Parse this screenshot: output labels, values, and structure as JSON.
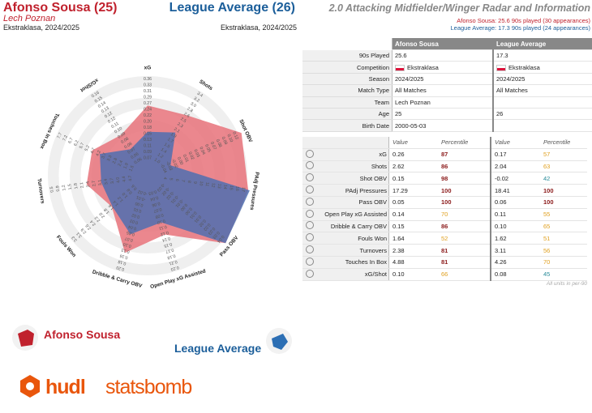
{
  "header": {
    "player_name": "Afonso Sousa (25)",
    "team": "Lech Poznan",
    "competition_season": "Ekstraklasa, 2024/2025",
    "comparison_name": "League Average (26)",
    "comparison_competition_season": "Ekstraklasa, 2024/2025"
  },
  "right_header": {
    "title": "2.0 Attacking Midfielder/Winger Radar and Information",
    "subtitle_player": "Afonso Sousa: 25.6 90s played (30 appearances)",
    "subtitle_league": "League Average: 17.3 90s played (24 appearances)"
  },
  "info_table": {
    "col_player": "Afonso Sousa",
    "col_league": "League Average",
    "rows": [
      {
        "label": "90s Played",
        "player": "25.6",
        "league": "17.3"
      },
      {
        "label": "Competition",
        "player": "Ekstraklasa",
        "league": "Ekstraklasa"
      },
      {
        "label": "Season",
        "player": "2024/2025",
        "league": "2024/2025"
      },
      {
        "label": "Match Type",
        "player": "All Matches",
        "league": "All Matches"
      },
      {
        "label": "Team",
        "player": "Lech Poznan",
        "league": ""
      },
      {
        "label": "Age",
        "player": "25",
        "league": "26"
      },
      {
        "label": "Birth Date",
        "player": "2000-05-03",
        "league": ""
      }
    ]
  },
  "stats_table": {
    "value_header": "Value",
    "percentile_header": "Percentile",
    "rows": [
      {
        "label": "xG",
        "icon": "xg-icon",
        "pv": "0.26",
        "pp": "87",
        "lv": "0.17",
        "lp": "57"
      },
      {
        "label": "Shots",
        "icon": "shots-icon",
        "pv": "2.62",
        "pp": "86",
        "lv": "2.04",
        "lp": "63"
      },
      {
        "label": "Shot OBV",
        "icon": "shot-obv-icon",
        "pv": "0.15",
        "pp": "98",
        "lv": "-0.02",
        "lp": "42"
      },
      {
        "label": "PAdj Pressures",
        "icon": "pressures-icon",
        "pv": "17.29",
        "pp": "100",
        "lv": "18.41",
        "lp": "100"
      },
      {
        "label": "Pass OBV",
        "icon": "pass-obv-icon",
        "pv": "0.05",
        "pp": "100",
        "lv": "0.06",
        "lp": "100"
      },
      {
        "label": "Open Play xG Assisted",
        "icon": "xg-assisted-icon",
        "pv": "0.14",
        "pp": "70",
        "lv": "0.11",
        "lp": "55"
      },
      {
        "label": "Dribble & Carry OBV",
        "icon": "dribble-icon",
        "pv": "0.15",
        "pp": "86",
        "lv": "0.10",
        "lp": "65"
      },
      {
        "label": "Fouls Won",
        "icon": "fouls-won-icon",
        "pv": "1.64",
        "pp": "52",
        "lv": "1.62",
        "lp": "51"
      },
      {
        "label": "Turnovers",
        "icon": "turnovers-icon",
        "pv": "2.38",
        "pp": "81",
        "lv": "3.11",
        "lp": "56"
      },
      {
        "label": "Touches In Box",
        "icon": "touches-icon",
        "pv": "4.88",
        "pp": "81",
        "lv": "4.26",
        "lp": "70"
      },
      {
        "label": "xG/Shot",
        "icon": "xg-shot-icon",
        "pv": "0.10",
        "pp": "66",
        "lv": "0.08",
        "lp": "45"
      }
    ],
    "footnote": "All units in per-90"
  },
  "colors": {
    "player": "#c0212d",
    "player_fill": "#e8727a",
    "league": "#1b5e9a",
    "league_fill": "#4f6fb0",
    "pct_red": "#8b1a1a",
    "pct_orange": "#e0a020",
    "pct_teal": "#2a8c9a"
  },
  "legend": {
    "player": "Afonso Sousa",
    "league": "League Average"
  },
  "logo": {
    "part1": "hudl",
    "part2": "statsbomb"
  },
  "chart_data": {
    "type": "radar",
    "axes": [
      {
        "label": "xG",
        "ticks": [
          "0.07",
          "0.09",
          "0.11",
          "0.13",
          "0.15",
          "0.18",
          "0.20",
          "0.22",
          "0.24",
          "0.27",
          "0.29",
          "0.31",
          "0.33",
          "0.36"
        ]
      },
      {
        "label": "Shots",
        "ticks": [
          "1.0",
          "1.2",
          "1.4",
          "1.5",
          "1.7",
          "1.9",
          "2.1",
          "2.3",
          "2.5",
          "2.6",
          "2.8",
          "3.0",
          "3.2",
          "3.4"
        ]
      },
      {
        "label": "Shot OBV",
        "ticks": [
          "-0.04",
          "-0.03",
          "-0.02",
          "0.00",
          "0.01",
          "0.02",
          "0.03",
          "0.04",
          "0.05",
          "0.07",
          "0.08",
          "0.09",
          "0.10",
          "0.12"
        ]
      },
      {
        "label": "PAdj Pressures",
        "ticks": [
          "4",
          "5",
          "6",
          "7",
          "8",
          "9",
          "10",
          "11",
          "12",
          "13",
          "14",
          "15",
          "16",
          "17"
        ]
      },
      {
        "label": "Pass OBV",
        "ticks": [
          "-0.03",
          "-0.02",
          "-0.02",
          "-0.01",
          "-0.01",
          "0.00",
          "0.00",
          "0.01",
          "0.01",
          "0.02",
          "0.02",
          "0.03",
          "0.03",
          "0.04"
        ]
      },
      {
        "label": "Open Play xG Assisted",
        "ticks": [
          "0.03",
          "0.04",
          "0.06",
          "0.07",
          "0.08",
          "0.10",
          "0.11",
          "0.12",
          "0.14",
          "0.15",
          "0.17",
          "0.18",
          "0.21",
          "0.23"
        ]
      },
      {
        "label": "Dribble & Carry OBV",
        "ticks": [
          "-0.02",
          "-0.01",
          "0.00",
          "0.01",
          "0.02",
          "0.03",
          "0.04",
          "0.05",
          "0.07",
          "0.10",
          "0.13",
          "0.16",
          "0.18",
          "0.20"
        ]
      },
      {
        "label": "Fouls Won",
        "ticks": [
          "0.6",
          "0.8",
          "1.0",
          "1.2",
          "1.4",
          "1.6",
          "1.8",
          "2.0",
          "2.2",
          "2.4",
          "2.6",
          "2.9",
          "3.1",
          "3.3"
        ]
      },
      {
        "label": "Turnovers",
        "ticks": [
          "4.7",
          "4.4",
          "4.0",
          "3.7",
          "3.4",
          "3.1",
          "2.7",
          "2.4",
          "2.1",
          "1.8",
          "1.5",
          "1.2",
          "0.9",
          "0.5"
        ]
      },
      {
        "label": "Touches In Box",
        "ticks": [
          "1.5",
          "1.9",
          "2.4",
          "2.8",
          "3.3",
          "3.7",
          "4.2",
          "4.7",
          "5.2",
          "5.7",
          "6.2",
          "6.7",
          "7.2",
          "7.7"
        ]
      },
      {
        "label": "xG/Shot",
        "ticks": [
          "0.06",
          "0.06",
          "0.07",
          "0.08",
          "0.08",
          "0.09",
          "0.10",
          "0.11",
          "0.12",
          "0.12",
          "0.13",
          "0.14",
          "0.15",
          "0.16"
        ]
      }
    ],
    "series": [
      {
        "name": "Afonso Sousa",
        "values": [
          0.26,
          2.62,
          0.15,
          17.29,
          0.05,
          0.14,
          0.15,
          1.64,
          2.38,
          4.88,
          0.1
        ]
      },
      {
        "name": "League Average",
        "values": [
          0.17,
          2.04,
          -0.02,
          18.41,
          0.06,
          0.11,
          0.1,
          1.62,
          3.11,
          4.26,
          0.08
        ]
      }
    ]
  }
}
